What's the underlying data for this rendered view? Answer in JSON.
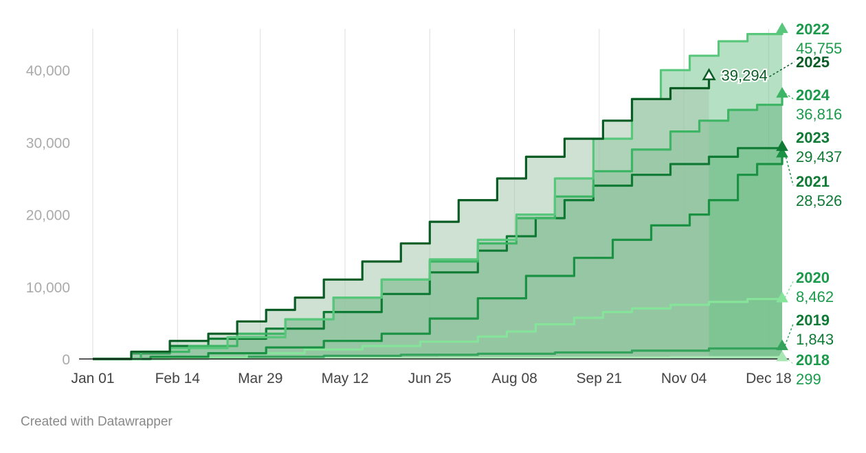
{
  "chart_data": {
    "type": "area",
    "title": "",
    "xlabel": "",
    "ylabel": "",
    "x_domain_days": [
      0,
      358
    ],
    "ylim": [
      0,
      46000
    ],
    "grid": "vertical",
    "x_ticks": [
      {
        "day": 0,
        "label": "Jan 01"
      },
      {
        "day": 44,
        "label": "Feb 14"
      },
      {
        "day": 87,
        "label": "Mar 29"
      },
      {
        "day": 131,
        "label": "May 12"
      },
      {
        "day": 175,
        "label": "Jun 25"
      },
      {
        "day": 219,
        "label": "Aug 08"
      },
      {
        "day": 263,
        "label": "Sep 21"
      },
      {
        "day": 307,
        "label": "Nov 04"
      },
      {
        "day": 351,
        "label": "Dec 18"
      }
    ],
    "y_ticks": [
      {
        "value": 0,
        "label": "0"
      },
      {
        "value": 10000,
        "label": "10,000"
      },
      {
        "value": 20000,
        "label": "20,000"
      },
      {
        "value": 30000,
        "label": "30,000"
      },
      {
        "value": 40000,
        "label": "40,000"
      }
    ],
    "series": [
      {
        "name": "2018",
        "final_value": "299",
        "line": "#a8e6b4",
        "fill": "#eefbee",
        "points": [
          [
            0,
            0
          ],
          [
            60,
            60
          ],
          [
            120,
            120
          ],
          [
            180,
            170
          ],
          [
            240,
            210
          ],
          [
            300,
            260
          ],
          [
            358,
            299
          ]
        ]
      },
      {
        "name": "2019",
        "final_value": "1,843",
        "line": "#33a35b",
        "fill": "#ddf7e0",
        "points": [
          [
            0,
            0
          ],
          [
            40,
            150
          ],
          [
            80,
            300
          ],
          [
            120,
            450
          ],
          [
            160,
            580
          ],
          [
            200,
            720
          ],
          [
            240,
            900
          ],
          [
            280,
            1150
          ],
          [
            320,
            1450
          ],
          [
            358,
            1843
          ]
        ]
      },
      {
        "name": "2020",
        "final_value": "8,462",
        "line": "#86e39a",
        "fill": "#c9f2cf",
        "points": [
          [
            0,
            0
          ],
          [
            40,
            200
          ],
          [
            80,
            800
          ],
          [
            110,
            1300
          ],
          [
            140,
            1800
          ],
          [
            170,
            2400
          ],
          [
            200,
            3100
          ],
          [
            215,
            3800
          ],
          [
            230,
            4800
          ],
          [
            250,
            5700
          ],
          [
            265,
            6500
          ],
          [
            280,
            7000
          ],
          [
            300,
            7500
          ],
          [
            320,
            7900
          ],
          [
            340,
            8300
          ],
          [
            358,
            8462
          ]
        ]
      },
      {
        "name": "2021",
        "final_value": "28,526",
        "line": "#1a9143",
        "fill": "#c0e9c9",
        "points": [
          [
            0,
            0
          ],
          [
            30,
            300
          ],
          [
            60,
            800
          ],
          [
            90,
            1600
          ],
          [
            120,
            2500
          ],
          [
            150,
            3500
          ],
          [
            175,
            5600
          ],
          [
            200,
            8400
          ],
          [
            225,
            11500
          ],
          [
            250,
            14000
          ],
          [
            270,
            16500
          ],
          [
            290,
            18500
          ],
          [
            310,
            20000
          ],
          [
            320,
            22000
          ],
          [
            335,
            25500
          ],
          [
            345,
            27000
          ],
          [
            358,
            28526
          ]
        ]
      },
      {
        "name": "2023",
        "final_value": "29,437",
        "line": "#0f7a34",
        "fill": "#9dd6aa",
        "points": [
          [
            0,
            0
          ],
          [
            20,
            800
          ],
          [
            40,
            1800
          ],
          [
            60,
            2800
          ],
          [
            90,
            4200
          ],
          [
            120,
            6500
          ],
          [
            150,
            9000
          ],
          [
            175,
            12000
          ],
          [
            200,
            15000
          ],
          [
            215,
            17000
          ],
          [
            230,
            19500
          ],
          [
            245,
            22000
          ],
          [
            260,
            24000
          ],
          [
            280,
            25500
          ],
          [
            300,
            27000
          ],
          [
            320,
            28000
          ],
          [
            335,
            29200
          ],
          [
            358,
            29437
          ]
        ]
      },
      {
        "name": "2024",
        "final_value": "36,816",
        "line": "#3db564",
        "fill": "#5ea877",
        "points": [
          [
            0,
            0
          ],
          [
            25,
            1000
          ],
          [
            50,
            1800
          ],
          [
            75,
            3500
          ],
          [
            100,
            5500
          ],
          [
            125,
            8500
          ],
          [
            150,
            11000
          ],
          [
            175,
            13500
          ],
          [
            200,
            16000
          ],
          [
            220,
            19500
          ],
          [
            240,
            22500
          ],
          [
            260,
            26000
          ],
          [
            280,
            29000
          ],
          [
            300,
            31500
          ],
          [
            315,
            33000
          ],
          [
            330,
            34500
          ],
          [
            345,
            35200
          ],
          [
            358,
            36816
          ]
        ]
      },
      {
        "name": "2022",
        "final_value": "45,755",
        "line": "#58c77c",
        "fill": "#7ac791",
        "points": [
          [
            0,
            0
          ],
          [
            20,
            900
          ],
          [
            40,
            1500
          ],
          [
            70,
            3000
          ],
          [
            100,
            5500
          ],
          [
            125,
            8500
          ],
          [
            150,
            11000
          ],
          [
            175,
            13800
          ],
          [
            200,
            16500
          ],
          [
            220,
            20000
          ],
          [
            240,
            25000
          ],
          [
            260,
            30500
          ],
          [
            280,
            36000
          ],
          [
            295,
            40000
          ],
          [
            310,
            42000
          ],
          [
            325,
            44000
          ],
          [
            340,
            45000
          ],
          [
            358,
            45755
          ]
        ]
      },
      {
        "name": "2025",
        "final_value": "39,294",
        "line": "#0a5c25",
        "fill": "#a8c9ae",
        "points": [
          [
            0,
            0
          ],
          [
            20,
            1000
          ],
          [
            40,
            2500
          ],
          [
            60,
            3500
          ],
          [
            75,
            5200
          ],
          [
            90,
            6800
          ],
          [
            105,
            8500
          ],
          [
            120,
            11000
          ],
          [
            140,
            13500
          ],
          [
            160,
            16000
          ],
          [
            175,
            19000
          ],
          [
            190,
            22000
          ],
          [
            210,
            25000
          ],
          [
            225,
            28000
          ],
          [
            245,
            30500
          ],
          [
            265,
            33000
          ],
          [
            280,
            36000
          ],
          [
            300,
            37500
          ],
          [
            320,
            39294
          ]
        ]
      }
    ]
  },
  "credit": "Created with Datawrapper"
}
